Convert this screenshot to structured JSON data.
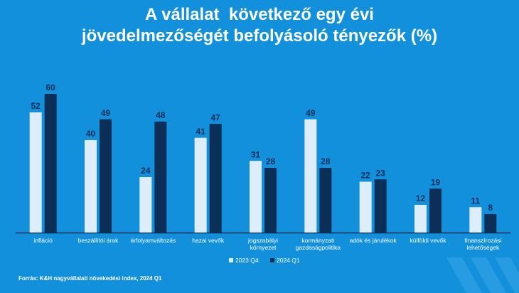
{
  "title_line1": "A vállalat  következő egy évi",
  "title_line2": "jövedelmezőségét befolyásoló tényezők (%)",
  "source": "Forrás: K&H nagyvállalati növekedési index, 2024 Q1",
  "colors": {
    "background": "#1290dc",
    "series_2023q4": "#ddeefa",
    "series_2024q1": "#0b2f57",
    "axis": "#0b2f57",
    "text_dark": "#0b2f57",
    "text_light": "#ffffff"
  },
  "chart_data": {
    "type": "bar",
    "categories": [
      [
        "infláció"
      ],
      [
        "beszállítói árak"
      ],
      [
        "árfolyamváltozás"
      ],
      [
        "hazai vevők"
      ],
      [
        "jogszabályi",
        "környezet"
      ],
      [
        "kormányzati",
        "gazdaságpolitika"
      ],
      [
        "adók és járulékok"
      ],
      [
        "külföldi vevők"
      ],
      [
        "finanszírozási",
        "lehetőségek"
      ]
    ],
    "series": [
      {
        "name": "2023 Q4",
        "values": [
          52,
          40,
          24,
          41,
          31,
          49,
          22,
          12,
          11
        ]
      },
      {
        "name": "2024 Q1",
        "values": [
          60,
          49,
          48,
          47,
          28,
          28,
          23,
          19,
          8
        ]
      }
    ],
    "ylim": [
      0,
      60
    ],
    "grid": false,
    "legend_position": "bottom-center",
    "data_labels": true
  }
}
